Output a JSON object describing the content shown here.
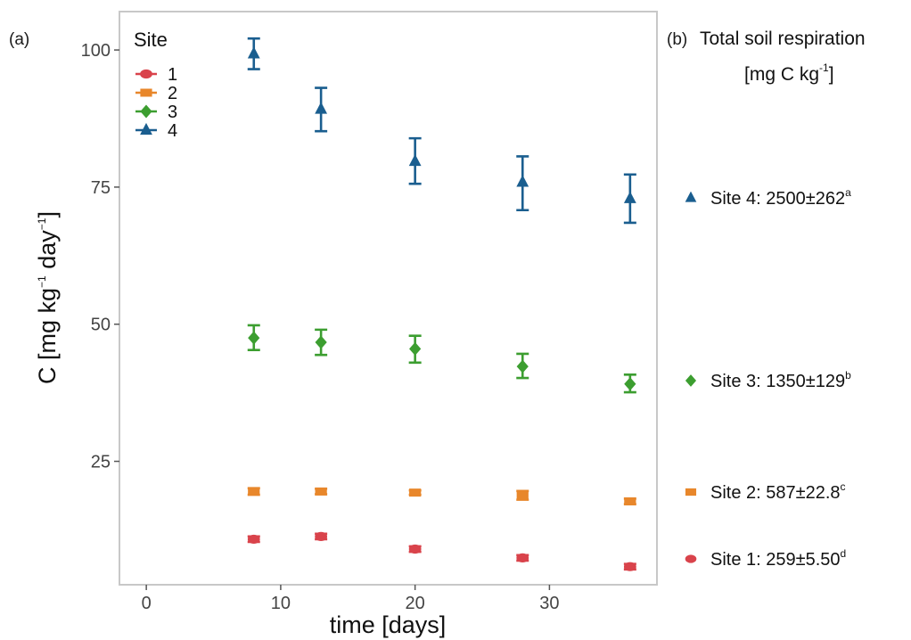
{
  "panel_a_label": "(a)",
  "panel_b_label": "(b)",
  "panel_b": {
    "title_line1": "Total  soil respiration",
    "title_line2_main": "[mg C kg",
    "title_line2_sup": "-1",
    "title_line2_end": "]",
    "entries": [
      {
        "label": "Site 4:  2500±262",
        "sup": "a",
        "marker": "triangle",
        "color": "#1a5e8f"
      },
      {
        "label": "Site 3:  1350±129",
        "sup": "b",
        "marker": "diamond",
        "color": "#3c9e30"
      },
      {
        "label": "Site 2:  587±22.8",
        "sup": "c",
        "marker": "square",
        "color": "#e8872b"
      },
      {
        "label": "Site 1:  259±5.50",
        "sup": "d",
        "marker": "circle",
        "color": "#d9434b"
      }
    ]
  },
  "chart_data": {
    "type": "scatter",
    "title": "",
    "xlabel": "time [days]",
    "ylabel_parts": {
      "a": "C [mg  kg",
      "sup1": "−1",
      "b": " day",
      "sup2": "−1",
      "c": "]"
    },
    "xlim": [
      -2,
      38
    ],
    "ylim": [
      2.5,
      107
    ],
    "x_ticks": [
      0,
      10,
      20,
      30
    ],
    "y_ticks": [
      25,
      50,
      75,
      100
    ],
    "grid": false,
    "legend": {
      "title": "Site",
      "placement": "top-left",
      "items": [
        {
          "label": "1",
          "marker": "circle",
          "color": "#d9434b"
        },
        {
          "label": "2",
          "marker": "square",
          "color": "#e8872b"
        },
        {
          "label": "3",
          "marker": "diamond",
          "color": "#3c9e30"
        },
        {
          "label": "4",
          "marker": "triangle",
          "color": "#1a5e8f"
        }
      ]
    },
    "series": [
      {
        "name": "1",
        "marker": "circle",
        "color": "#d9434b",
        "x": [
          8,
          13,
          20,
          28,
          36
        ],
        "y": [
          10.8,
          11.3,
          9.0,
          7.4,
          5.8
        ],
        "err_low": [
          10.3,
          10.8,
          8.5,
          6.9,
          5.3
        ],
        "err_high": [
          11.3,
          11.8,
          9.5,
          7.9,
          6.3
        ]
      },
      {
        "name": "2",
        "marker": "square",
        "color": "#e8872b",
        "x": [
          8,
          13,
          20,
          28,
          36
        ],
        "y": [
          19.5,
          19.5,
          19.3,
          18.8,
          17.7
        ],
        "err_low": [
          18.9,
          19.0,
          18.9,
          18.0,
          17.2
        ],
        "err_high": [
          20.1,
          20.0,
          19.7,
          19.6,
          18.2
        ]
      },
      {
        "name": "3",
        "marker": "diamond",
        "color": "#3c9e30",
        "x": [
          8,
          13,
          20,
          28,
          36
        ],
        "y": [
          47.5,
          46.7,
          45.5,
          42.3,
          39.1
        ],
        "err_low": [
          45.3,
          44.4,
          43.0,
          40.2,
          37.6
        ],
        "err_high": [
          49.8,
          49.0,
          47.9,
          44.6,
          40.8
        ]
      },
      {
        "name": "4",
        "marker": "triangle",
        "color": "#1a5e8f",
        "x": [
          8,
          13,
          20,
          28,
          36
        ],
        "y": [
          99.3,
          89.2,
          79.7,
          75.9,
          72.9
        ],
        "err_low": [
          96.5,
          85.2,
          75.6,
          70.8,
          68.5
        ],
        "err_high": [
          102.1,
          93.1,
          83.9,
          80.6,
          77.3
        ]
      }
    ]
  }
}
